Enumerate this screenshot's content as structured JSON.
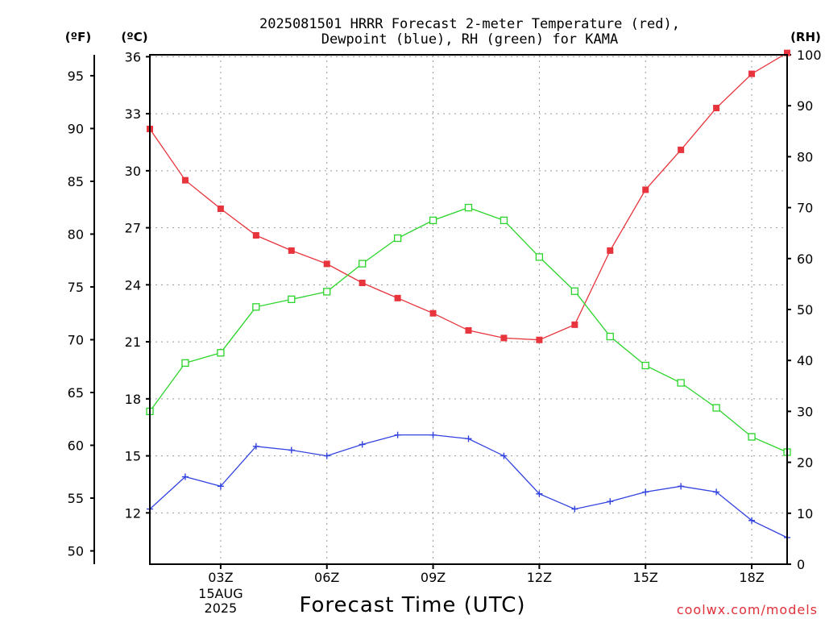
{
  "chart_data": {
    "type": "line",
    "title_lines": [
      "2025081501 HRRR Forecast 2-meter Temperature (red),",
      "Dewpoint (blue), RH (green) for KAMA"
    ],
    "units": {
      "fahrenheit": "(ºF)",
      "celsius": "(ºC)",
      "rh": "(RH)"
    },
    "xlabel": "Forecast Time (UTC)",
    "credit": "coolwx.com/models",
    "x_hours": [
      1,
      2,
      3,
      4,
      5,
      6,
      7,
      8,
      9,
      10,
      11,
      12,
      13,
      14,
      15,
      16,
      17,
      18,
      19
    ],
    "xlim": [
      1,
      19
    ],
    "x_ticks": [
      {
        "hour": 3,
        "label": "03Z",
        "sub": [
          "15AUG",
          "2025"
        ]
      },
      {
        "hour": 6,
        "label": "06Z",
        "sub": []
      },
      {
        "hour": 9,
        "label": "09Z",
        "sub": []
      },
      {
        "hour": 12,
        "label": "12Z",
        "sub": []
      },
      {
        "hour": 15,
        "label": "15Z",
        "sub": []
      },
      {
        "hour": 18,
        "label": "18Z",
        "sub": []
      }
    ],
    "celsius_axis": {
      "lim": [
        9.3,
        36.1
      ],
      "ticks": [
        12,
        15,
        18,
        21,
        24,
        27,
        30,
        33,
        36
      ]
    },
    "fahrenheit_axis": {
      "ticks": [
        50,
        55,
        60,
        65,
        70,
        75,
        80,
        85,
        90,
        95
      ]
    },
    "rh_axis": {
      "lim": [
        0,
        100
      ],
      "ticks": [
        0,
        10,
        20,
        30,
        40,
        50,
        60,
        70,
        80,
        90,
        100
      ]
    },
    "grid": true,
    "series": [
      {
        "name": "Temperature",
        "units": "C",
        "color": "#e8343c",
        "marker": "filled-square",
        "values": [
          32.2,
          29.5,
          28.0,
          26.6,
          25.8,
          25.1,
          24.1,
          23.3,
          22.5,
          21.6,
          21.2,
          21.1,
          21.9,
          25.8,
          29.0,
          31.1,
          33.3,
          35.1,
          36.2
        ]
      },
      {
        "name": "Dewpoint",
        "units": "C",
        "color": "#3343e0",
        "marker": "plus",
        "values": [
          12.2,
          13.9,
          13.4,
          15.5,
          15.3,
          15.0,
          15.6,
          16.1,
          16.1,
          15.9,
          15.0,
          13.0,
          12.2,
          12.6,
          13.1,
          13.4,
          13.1,
          11.6,
          10.7
        ]
      },
      {
        "name": "RH",
        "units": "%",
        "color": "#2ad42a",
        "marker": "open-square",
        "values": [
          30,
          39.5,
          41.5,
          50.5,
          52,
          53.5,
          59,
          64,
          67.5,
          70,
          67.5,
          60.3,
          53.6,
          44.7,
          39,
          35.6,
          30.7,
          25,
          22
        ]
      }
    ]
  }
}
